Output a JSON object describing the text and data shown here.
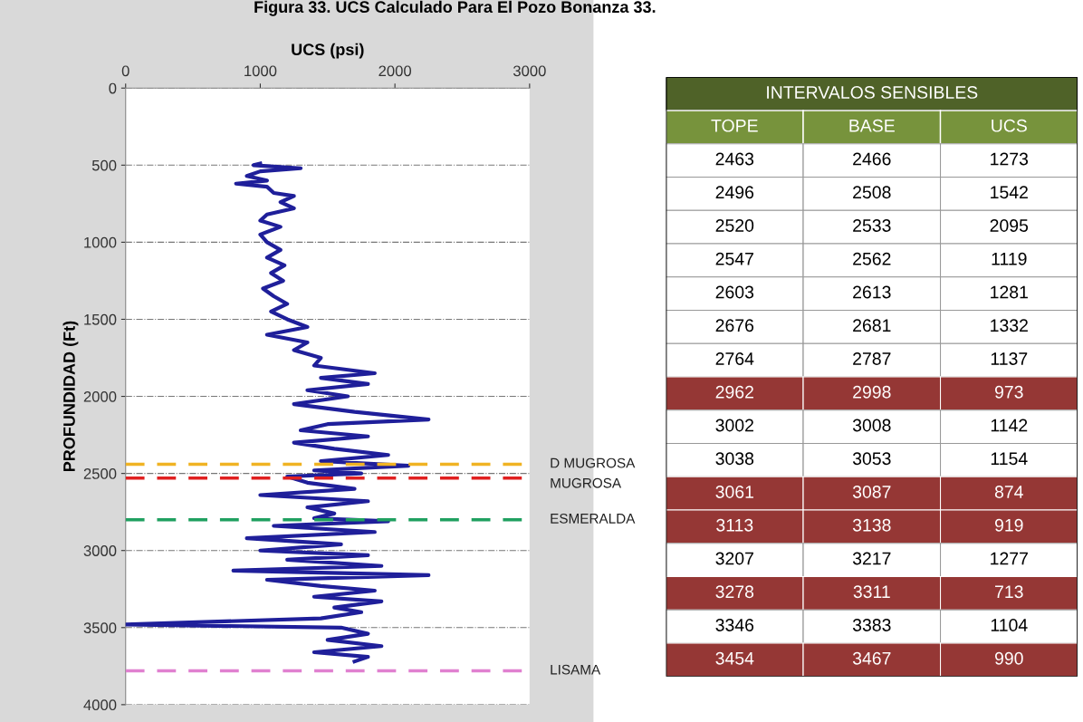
{
  "chart_data": [
    {
      "type": "line",
      "title": "Figura 33. UCS Calculado Para El Pozo Bonanza 33.",
      "xlabel": "UCS (psi)",
      "ylabel": "PROFUNDIDAD (Ft)",
      "xlim": [
        0,
        3000
      ],
      "xticks": [
        0,
        1000,
        2000,
        3000
      ],
      "ylim": [
        4000,
        0
      ],
      "yticks": [
        0,
        500,
        1000,
        1500,
        2000,
        2500,
        3000,
        3500,
        4000
      ],
      "grid": "y",
      "line_style": "solid",
      "series": [
        {
          "color": "#1f1f9a",
          "x": [
            1000,
            950,
            1300,
            1000,
            900,
            1050,
            820,
            1050,
            1100,
            1250,
            1150,
            1250,
            1050,
            1000,
            1150,
            1000,
            1050,
            1150,
            1050,
            1180,
            1080,
            1170,
            1020,
            1100,
            1200,
            1080,
            1200,
            1350,
            1050,
            1350,
            1250,
            1450,
            1400,
            1850,
            1450,
            1800,
            1350,
            1650,
            1250,
            1700,
            2250,
            1500,
            1300,
            1800,
            1250,
            1550,
            1950,
            1450,
            2100,
            1400,
            1750,
            1200,
            1350,
            1700,
            1000,
            1800,
            1350,
            1550,
            1400,
            1950,
            1100,
            1850,
            900,
            1600,
            1000,
            1800,
            1200,
            1900,
            800,
            2250,
            1050,
            1450,
            1850,
            1400,
            1900,
            1550,
            1750,
            1450,
            0,
            1600,
            1800,
            1500,
            1900,
            1400,
            1800,
            1700
          ],
          "values": [
            490,
            500,
            520,
            540,
            570,
            600,
            620,
            640,
            680,
            700,
            740,
            780,
            820,
            860,
            900,
            950,
            1000,
            1050,
            1100,
            1150,
            1200,
            1250,
            1300,
            1350,
            1400,
            1450,
            1500,
            1550,
            1600,
            1650,
            1700,
            1750,
            1800,
            1850,
            1880,
            1920,
            1960,
            2000,
            2050,
            2100,
            2150,
            2180,
            2220,
            2260,
            2300,
            2340,
            2380,
            2420,
            2450,
            2480,
            2500,
            2520,
            2560,
            2600,
            2640,
            2680,
            2720,
            2760,
            2790,
            2810,
            2840,
            2880,
            2920,
            2960,
            3000,
            3030,
            3060,
            3100,
            3130,
            3160,
            3190,
            3230,
            3260,
            3300,
            3330,
            3370,
            3400,
            3440,
            3480,
            3500,
            3540,
            3580,
            3620,
            3660,
            3690,
            3720
          ]
        }
      ],
      "ref_lines": [
        {
          "axis": "y",
          "value": 2440,
          "label": "D MUGROSA",
          "color": "#f0b323",
          "line_style": "dashed"
        },
        {
          "axis": "y",
          "value": 2530,
          "label": "MUGROSA",
          "color": "#e02020",
          "line_style": "dashed"
        },
        {
          "axis": "y",
          "value": 2800,
          "label": "ESMERALDA",
          "color": "#20a060",
          "line_style": "dashed"
        },
        {
          "axis": "y",
          "value": 3780,
          "label": "LISAMA",
          "color": "#e080d0",
          "line_style": "dashed"
        }
      ]
    },
    {
      "type": "other",
      "title": "INTERVALOS SENSIBLES",
      "categories": [
        "TOPE",
        "BASE",
        "UCS"
      ],
      "annotations": [
        "2463",
        "2466",
        "1273",
        "2496",
        "2508",
        "1542",
        "2520",
        "2533",
        "2095",
        "2547",
        "2562",
        "1119",
        "2603",
        "2613",
        "1281",
        "2676",
        "2681",
        "1332",
        "2764",
        "2787",
        "1137",
        "2962",
        "2998",
        "973",
        "3002",
        "3008",
        "1142",
        "3038",
        "3053",
        "1154",
        "3061",
        "3087",
        "874",
        "3113",
        "3138",
        "919",
        "3207",
        "3217",
        "1277",
        "3278",
        "3311",
        "713",
        "3346",
        "3383",
        "1104",
        "3454",
        "3467",
        "990"
      ],
      "colors": [
        "#ffffff",
        "#ffffff",
        "#ffffff",
        "#ffffff",
        "#ffffff",
        "#ffffff",
        "#ffffff",
        "#953735",
        "#ffffff",
        "#ffffff",
        "#953735",
        "#953735",
        "#ffffff",
        "#953735",
        "#ffffff",
        "#953735"
      ]
    }
  ]
}
